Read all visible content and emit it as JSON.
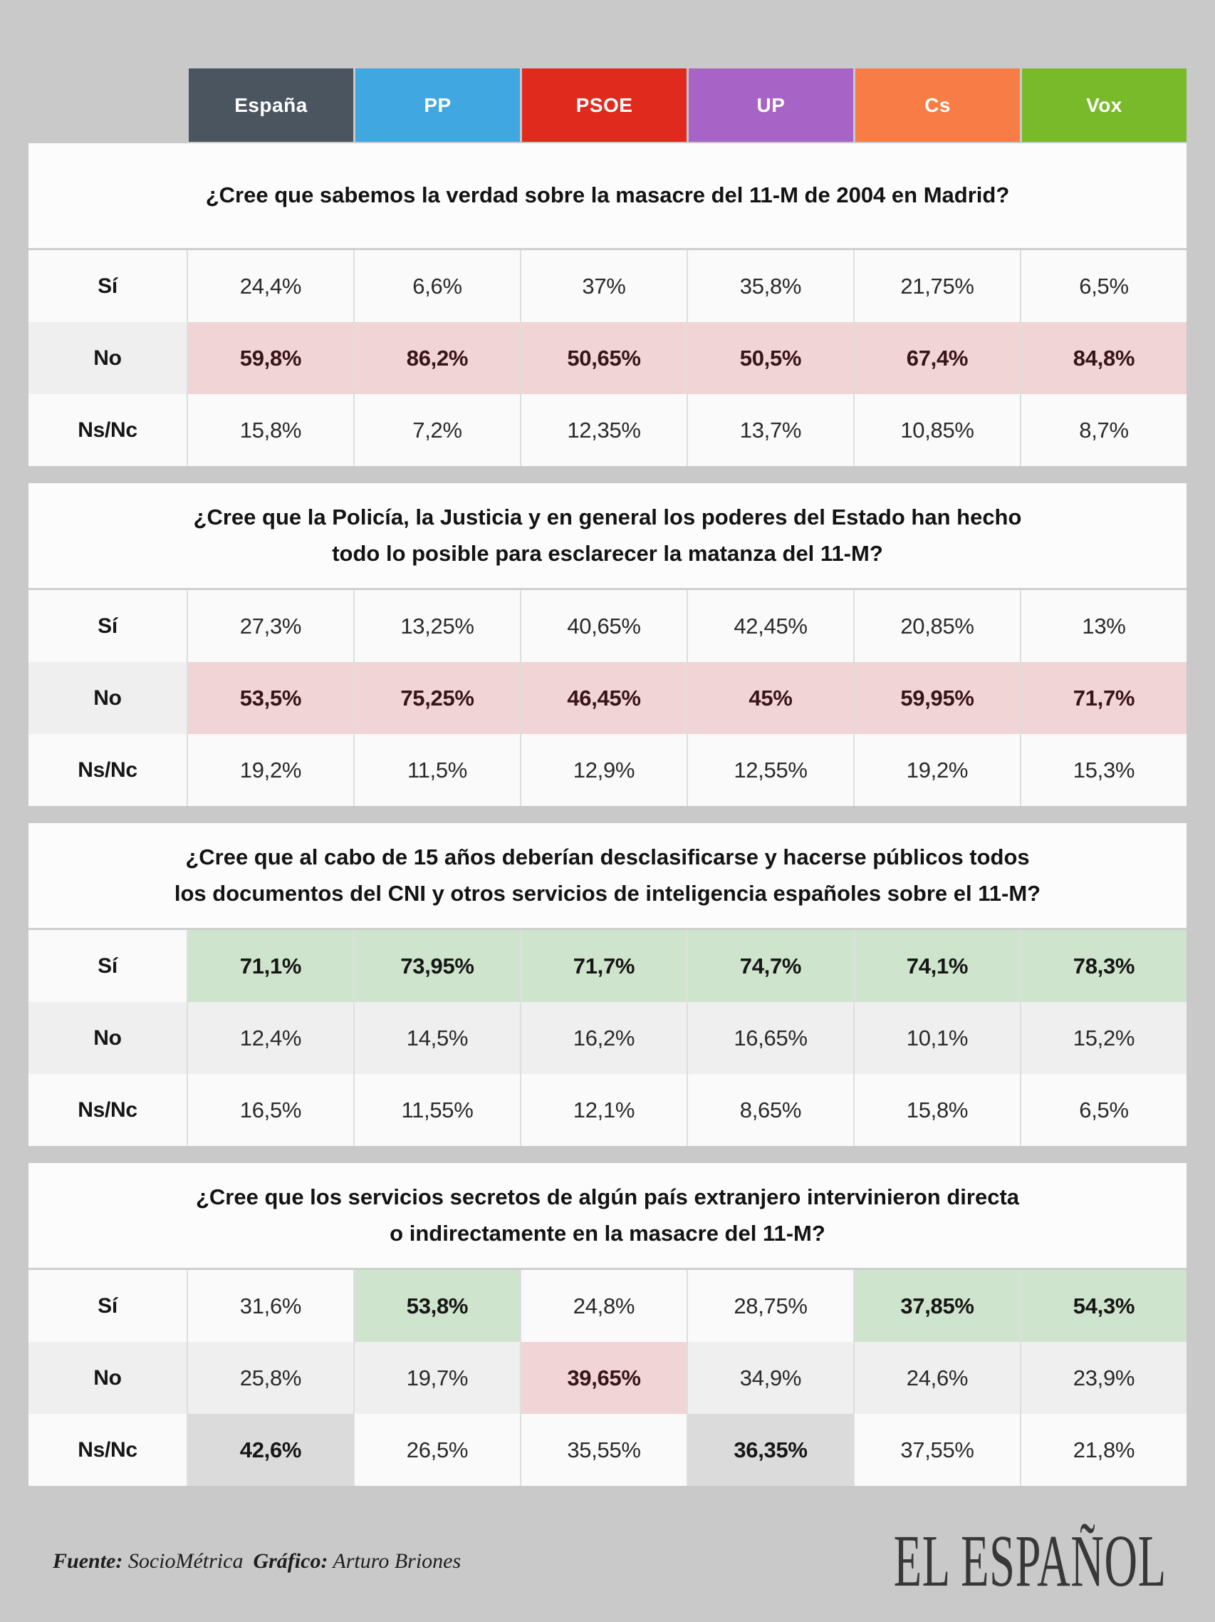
{
  "page": {
    "background": "#c9c9c9",
    "footer": {
      "fuente_label": "Fuente:",
      "fuente_value": "SocioMétrica",
      "grafico_label": "Gráfico:",
      "grafico_value": "Arturo Briones",
      "logo": "EL ESPAÑOL"
    }
  },
  "columns": [
    {
      "label": "España",
      "color": "#4b5560"
    },
    {
      "label": "PP",
      "color": "#41a7e1"
    },
    {
      "label": "PSOE",
      "color": "#e02a1d"
    },
    {
      "label": "UP",
      "color": "#a763c6"
    },
    {
      "label": "Cs",
      "color": "#f87c45"
    },
    {
      "label": "Vox",
      "color": "#79ba2b"
    }
  ],
  "row_labels": [
    "Sí",
    "No",
    "Ns/Nc"
  ],
  "highlight_colors": {
    "pink": "#f0d4d6",
    "green": "#cfe4cc",
    "gray": "#dbdbdb"
  },
  "value_unit": "%",
  "chart_data": [
    {
      "type": "table",
      "title": "¿Cree que sabemos la verdad sobre la masacre del 11-M de 2004 en Madrid?",
      "categories": [
        "España",
        "PP",
        "PSOE",
        "UP",
        "Cs",
        "Vox"
      ],
      "unit": "%",
      "series": [
        {
          "name": "Sí",
          "values": [
            24.4,
            6.6,
            37,
            35.8,
            21.75,
            6.5
          ],
          "highlight": null
        },
        {
          "name": "No",
          "values": [
            59.8,
            86.2,
            50.65,
            50.5,
            67.4,
            84.8
          ],
          "highlight": "pink"
        },
        {
          "name": "Ns/Nc",
          "values": [
            15.8,
            7.2,
            12.35,
            13.7,
            10.85,
            8.7
          ],
          "highlight": null
        }
      ]
    },
    {
      "type": "table",
      "title": "¿Cree que la Policía, la Justicia y en general los poderes del Estado han hecho\ntodo lo posible para esclarecer la matanza del 11-M?",
      "categories": [
        "España",
        "PP",
        "PSOE",
        "UP",
        "Cs",
        "Vox"
      ],
      "unit": "%",
      "series": [
        {
          "name": "Sí",
          "values": [
            27.3,
            13.25,
            40.65,
            42.45,
            20.85,
            13
          ],
          "highlight": null
        },
        {
          "name": "No",
          "values": [
            53.5,
            75.25,
            46.45,
            45,
            59.95,
            71.7
          ],
          "highlight": "pink"
        },
        {
          "name": "Ns/Nc",
          "values": [
            19.2,
            11.5,
            12.9,
            12.55,
            19.2,
            15.3
          ],
          "highlight": null
        }
      ]
    },
    {
      "type": "table",
      "title": "¿Cree que al cabo de 15 años deberían desclasificarse y hacerse públicos todos\nlos documentos del CNI y otros servicios de inteligencia españoles sobre el 11-M?",
      "categories": [
        "España",
        "PP",
        "PSOE",
        "UP",
        "Cs",
        "Vox"
      ],
      "unit": "%",
      "series": [
        {
          "name": "Sí",
          "values": [
            71.1,
            73.95,
            71.7,
            74.7,
            74.1,
            78.3
          ],
          "highlight": "green"
        },
        {
          "name": "No",
          "values": [
            12.4,
            14.5,
            16.2,
            16.65,
            10.1,
            15.2
          ],
          "highlight": null
        },
        {
          "name": "Ns/Nc",
          "values": [
            16.5,
            11.55,
            12.1,
            8.65,
            15.8,
            6.5
          ],
          "highlight": null
        }
      ]
    },
    {
      "type": "table",
      "title": "¿Cree que los servicios secretos de algún país extranjero intervinieron directa\no indirectamente en la masacre del 11-M?",
      "categories": [
        "España",
        "PP",
        "PSOE",
        "UP",
        "Cs",
        "Vox"
      ],
      "unit": "%",
      "series": [
        {
          "name": "Sí",
          "values": [
            31.6,
            53.8,
            24.8,
            28.75,
            37.85,
            54.3
          ],
          "highlight": [
            null,
            "green",
            null,
            null,
            "green",
            "green"
          ]
        },
        {
          "name": "No",
          "values": [
            25.8,
            19.7,
            39.65,
            34.9,
            24.6,
            23.9
          ],
          "highlight": [
            null,
            null,
            "pink",
            null,
            null,
            null
          ]
        },
        {
          "name": "Ns/Nc",
          "values": [
            42.6,
            26.5,
            35.55,
            36.35,
            37.55,
            21.8
          ],
          "highlight": [
            "gray",
            null,
            null,
            "gray",
            null,
            null
          ]
        }
      ]
    }
  ]
}
